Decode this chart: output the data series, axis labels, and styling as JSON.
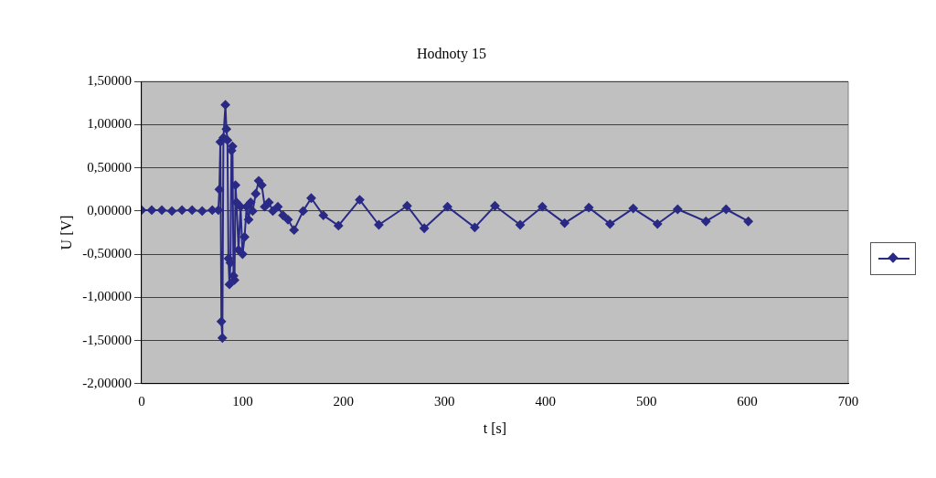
{
  "chart_data": {
    "type": "line",
    "title": "Hodnoty 15",
    "xlabel": "t [s]",
    "ylabel": "U [V]",
    "x": [
      0,
      10,
      20,
      30,
      40,
      50,
      60,
      70,
      76,
      77,
      78,
      79,
      80,
      81,
      83,
      84,
      85,
      86,
      87,
      88,
      89,
      90,
      91,
      92,
      93,
      94,
      96,
      98,
      100,
      102,
      104,
      106,
      108,
      110,
      113,
      116,
      119,
      122,
      126,
      130,
      135,
      140,
      145,
      151,
      160,
      168,
      180,
      195,
      216,
      235,
      263,
      280,
      303,
      330,
      350,
      375,
      397,
      419,
      443,
      464,
      487,
      511,
      531,
      559,
      579,
      601
    ],
    "series": [
      {
        "color": "#2a2a86",
        "values": [
          0.01,
          0.01,
          0.01,
          0.0,
          0.01,
          0.01,
          0.0,
          0.01,
          0.01,
          0.25,
          0.8,
          -1.28,
          -1.47,
          0.85,
          1.23,
          0.95,
          0.82,
          -0.55,
          -0.85,
          -0.6,
          0.7,
          0.75,
          -0.75,
          -0.8,
          0.3,
          0.1,
          -0.45,
          0.05,
          -0.5,
          -0.3,
          0.05,
          -0.1,
          0.1,
          0.0,
          0.2,
          0.35,
          0.3,
          0.05,
          0.1,
          0.0,
          0.05,
          -0.05,
          -0.1,
          -0.22,
          0.0,
          0.15,
          -0.05,
          -0.17,
          0.13,
          -0.16,
          0.06,
          -0.2,
          0.05,
          -0.19,
          0.06,
          -0.16,
          0.05,
          -0.14,
          0.04,
          -0.15,
          0.03,
          -0.15,
          0.02,
          -0.12,
          0.02,
          -0.12
        ]
      }
    ],
    "xlim": [
      0,
      700
    ],
    "xticks": [
      0,
      100,
      200,
      300,
      400,
      500,
      600,
      700
    ],
    "ylim": [
      -2,
      1.5
    ],
    "yticks": [
      {
        "value": -2,
        "label": "-2,00000"
      },
      {
        "value": -1.5,
        "label": "-1,50000"
      },
      {
        "value": -1,
        "label": "-1,00000"
      },
      {
        "value": -0.5,
        "label": "-0,50000"
      },
      {
        "value": 0,
        "label": "0,00000"
      },
      {
        "value": 0.5,
        "label": "0,50000"
      },
      {
        "value": 1,
        "label": "1,00000"
      },
      {
        "value": 1.5,
        "label": "1,50000"
      }
    ],
    "grid": "y",
    "marker": "diamond",
    "line_style": "solid"
  }
}
